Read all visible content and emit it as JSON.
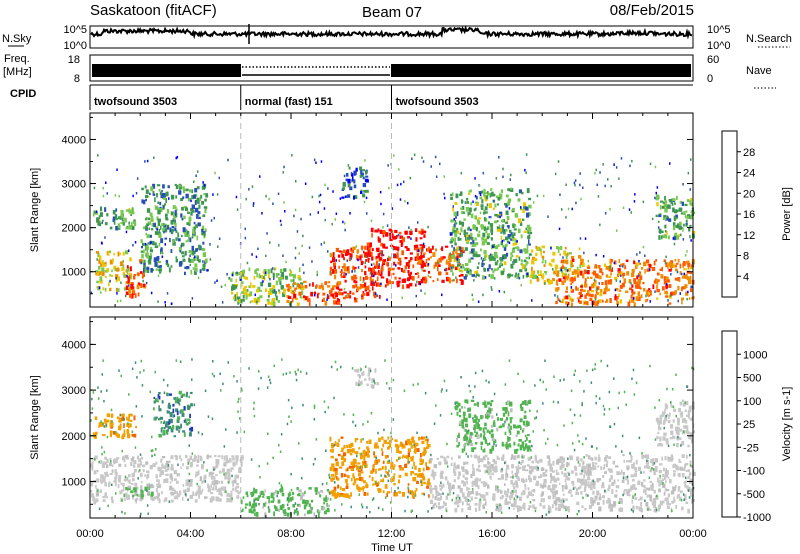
{
  "header": {
    "station": "Saskatoon (fitACF)",
    "beam": "Beam 07",
    "date": "08/Feb/2015"
  },
  "noise_panel": {
    "left_label": "N.Sky",
    "right_label": "N.Search",
    "ticks_left": [
      "10^5",
      "10^0"
    ],
    "ticks_right": [
      "10^5",
      "10^0"
    ]
  },
  "freq_panel": {
    "left_label_1": "Freq.",
    "left_label_2": "[MHz]",
    "right_label": "Nave",
    "ticks_left": [
      "18",
      "8"
    ],
    "ticks_right": [
      "60",
      "0"
    ]
  },
  "cpid": {
    "label": "CPID",
    "segments": [
      {
        "name": "twofsound 3503",
        "start_hour": 0,
        "end_hour": 6
      },
      {
        "name": "normal (fast) 151",
        "start_hour": 6,
        "end_hour": 12
      },
      {
        "name": "twofsound 3503",
        "start_hour": 12,
        "end_hour": 24
      }
    ]
  },
  "chart_data": [
    {
      "type": "heatmap",
      "quantity": "Power",
      "ylabel": "Slant Range [km]",
      "xlabel": "Time UT",
      "xlim": [
        0,
        24
      ],
      "ylim": [
        200,
        4600
      ],
      "yticks": [
        "1000",
        "2000",
        "3000",
        "4000"
      ],
      "xticks": [
        "00:00",
        "04:00",
        "08:00",
        "12:00",
        "16:00",
        "20:00",
        "00:00"
      ],
      "colorbar": {
        "label": "Power [dB]",
        "ticks": [
          "4",
          "8",
          "12",
          "16",
          "20",
          "24",
          "28"
        ],
        "range": [
          0,
          32
        ],
        "colors": [
          "#0000ff",
          "#2850b4",
          "#3c9650",
          "#78c850",
          "#e8c800",
          "#f08c00",
          "#ff5a00",
          "#ff0000"
        ]
      },
      "echo_regions": [
        {
          "t0": 0.1,
          "t1": 1.8,
          "r0": 2000,
          "r1": 2500,
          "level": 12
        },
        {
          "t0": 0.2,
          "t1": 1.6,
          "r0": 600,
          "r1": 1500,
          "level": 18
        },
        {
          "t0": 1.4,
          "t1": 2.2,
          "r0": 500,
          "r1": 1300,
          "level": 28
        },
        {
          "t0": 2.0,
          "t1": 4.6,
          "r0": 1000,
          "r1": 3000,
          "level": 10
        },
        {
          "t0": 5.5,
          "t1": 8.5,
          "r0": 300,
          "r1": 1100,
          "level": 14
        },
        {
          "t0": 7.8,
          "t1": 10.0,
          "r0": 300,
          "r1": 800,
          "level": 26
        },
        {
          "t0": 9.5,
          "t1": 11.5,
          "r0": 400,
          "r1": 1600,
          "level": 28
        },
        {
          "t0": 11.0,
          "t1": 13.3,
          "r0": 700,
          "r1": 2000,
          "level": 30
        },
        {
          "t0": 13.0,
          "t1": 14.8,
          "r0": 800,
          "r1": 1600,
          "level": 26
        },
        {
          "t0": 14.3,
          "t1": 17.5,
          "r0": 900,
          "r1": 2900,
          "level": 12
        },
        {
          "t0": 17.5,
          "t1": 19.5,
          "r0": 800,
          "r1": 1600,
          "level": 18
        },
        {
          "t0": 18.5,
          "t1": 24.0,
          "r0": 300,
          "r1": 1300,
          "level": 24
        },
        {
          "t0": 10.0,
          "t1": 11.0,
          "r0": 2700,
          "r1": 3400,
          "level": 6
        },
        {
          "t0": 22.5,
          "t1": 24.0,
          "r0": 1800,
          "r1": 2800,
          "level": 12
        }
      ]
    },
    {
      "type": "heatmap",
      "quantity": "Velocity",
      "ylabel": "Slant Range [km]",
      "xlabel": "Time UT",
      "xlim": [
        0,
        24
      ],
      "ylim": [
        200,
        4600
      ],
      "yticks": [
        "1000",
        "2000",
        "3000",
        "4000"
      ],
      "xticks": [
        "00:00",
        "04:00",
        "08:00",
        "12:00",
        "16:00",
        "20:00",
        "00:00"
      ],
      "colorbar": {
        "label": "Velocity [m s-1]",
        "ticks": [
          "1000",
          "500",
          "100",
          "25",
          "-25",
          "-100",
          "-500",
          "-1000"
        ],
        "colors": [
          "#1e3cb4",
          "#3c8c78",
          "#50b450",
          "#bebebe",
          "#c8c8c8",
          "#f0a000",
          "#f06400",
          "#ff0000"
        ]
      },
      "echo_regions": [
        {
          "t0": 0.1,
          "t1": 1.8,
          "r0": 2000,
          "r1": 2500,
          "level": -100
        },
        {
          "t0": 0.0,
          "t1": 6.0,
          "r0": 600,
          "r1": 1600,
          "level": 0
        },
        {
          "t0": 1.3,
          "t1": 2.5,
          "r0": 700,
          "r1": 1000,
          "level": 100
        },
        {
          "t0": 2.5,
          "t1": 4.0,
          "r0": 2000,
          "r1": 3000,
          "level": 500
        },
        {
          "t0": 6.0,
          "t1": 9.5,
          "r0": 300,
          "r1": 900,
          "level": 100
        },
        {
          "t0": 9.5,
          "t1": 13.5,
          "r0": 700,
          "r1": 2000,
          "level": -100
        },
        {
          "t0": 10.5,
          "t1": 11.5,
          "r0": 3100,
          "r1": 3500,
          "level": 0
        },
        {
          "t0": 13.5,
          "t1": 24.0,
          "r0": 400,
          "r1": 1600,
          "level": 0
        },
        {
          "t0": 14.5,
          "t1": 17.5,
          "r0": 1700,
          "r1": 2800,
          "level": 100
        },
        {
          "t0": 22.5,
          "t1": 24.0,
          "r0": 1800,
          "r1": 2800,
          "level": -25
        }
      ]
    }
  ]
}
